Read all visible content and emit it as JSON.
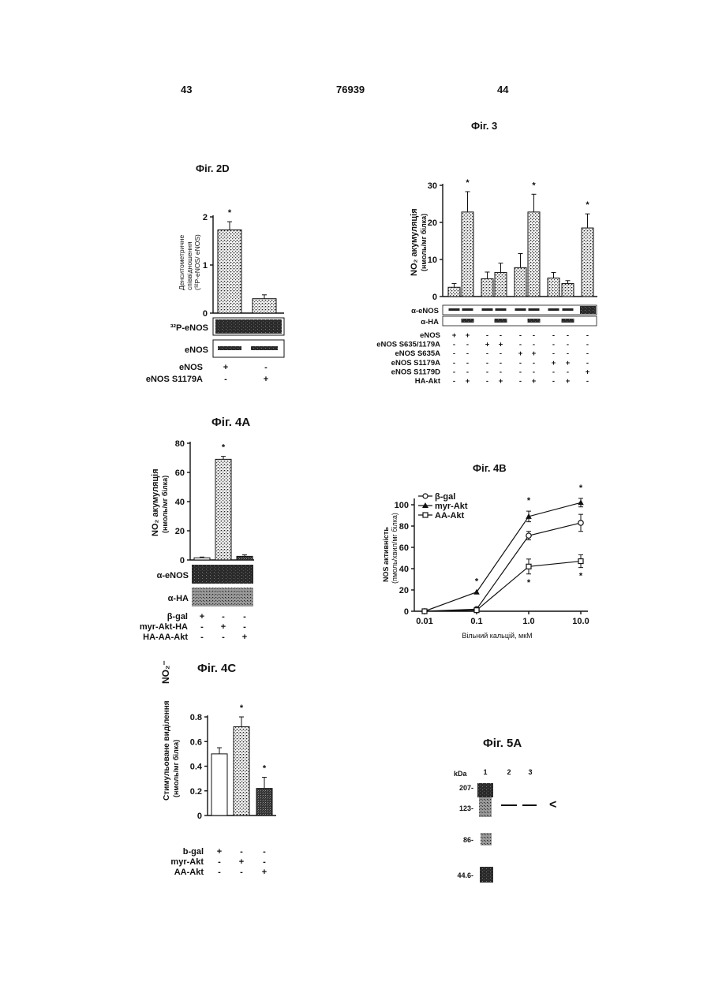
{
  "header": {
    "left_page": "43",
    "patent_number": "76939",
    "right_page": "44"
  },
  "fig2d": {
    "title": "Фіг. 2D",
    "ylabel_line1": "Денситометричне",
    "ylabel_line2": "співвідношення",
    "ylabel_line3": "(³²P-eNOS/ eNOS)",
    "blot_labels": [
      "³²P-eNOS",
      "eNOS"
    ],
    "row_labels": [
      "eNOS",
      "eNOS S1179A"
    ],
    "row_signs": [
      [
        "+",
        "-"
      ],
      [
        "-",
        "+"
      ]
    ],
    "chart_data": {
      "type": "bar",
      "ylim": [
        0,
        2
      ],
      "yticks": [
        0,
        1,
        2
      ],
      "values": [
        1.73,
        0.3
      ],
      "errors": [
        0.17,
        0.08
      ],
      "significant": [
        "*",
        ""
      ]
    }
  },
  "fig3": {
    "title": "Фіг. 3",
    "ylabel_line1": "NO₂ акумуляція",
    "ylabel_line2": "(нмоль/мг білка)",
    "blot_labels": [
      "α-eNOS",
      "α-HA"
    ],
    "row_labels": [
      "eNOS",
      "eNOS S635/1179A",
      "eNOS S635A",
      "eNOS S1179A",
      "eNOS S1179D",
      "HA-Akt"
    ],
    "row_signs": [
      [
        "+",
        "+",
        "-",
        "-",
        "-",
        "-",
        "-",
        "-",
        "-"
      ],
      [
        "-",
        "-",
        "+",
        "+",
        "-",
        "-",
        "-",
        "-",
        "-"
      ],
      [
        "-",
        "-",
        "-",
        "-",
        "+",
        "+",
        "-",
        "-",
        "-"
      ],
      [
        "-",
        "-",
        "-",
        "-",
        "-",
        "-",
        "+",
        "+",
        "-"
      ],
      [
        "-",
        "-",
        "-",
        "-",
        "-",
        "-",
        "-",
        "-",
        "+"
      ],
      [
        "-",
        "+",
        "-",
        "+",
        "-",
        "+",
        "-",
        "+",
        "-"
      ]
    ],
    "chart_data": {
      "type": "bar",
      "ylim": [
        0,
        30
      ],
      "yticks": [
        0,
        10,
        20,
        30
      ],
      "values": [
        2.5,
        22.8,
        4.8,
        6.5,
        7.8,
        22.8,
        5,
        3.5,
        18.5
      ],
      "errors": [
        1,
        5.5,
        1.8,
        2.5,
        3.8,
        4.8,
        1.5,
        0.8,
        3.8
      ],
      "significant": [
        "",
        "*",
        "",
        "",
        "",
        "*",
        "",
        "",
        "*"
      ]
    }
  },
  "fig4a": {
    "title": "Фіг. 4A",
    "ylabel_line1": "NO₂ акумуляція",
    "ylabel_line2": "(нмоль/мг білка)",
    "blot_labels": [
      "α-eNOS",
      "α-HA"
    ],
    "row_labels": [
      "β-gal",
      "myr-Akt-HA",
      "HA-AA-Akt"
    ],
    "row_signs": [
      [
        "+",
        "-",
        "-"
      ],
      [
        "-",
        "+",
        "-"
      ],
      [
        "-",
        "-",
        "+"
      ]
    ],
    "chart_data": {
      "type": "bar",
      "ylim": [
        0,
        80
      ],
      "yticks": [
        0,
        20,
        40,
        60,
        80
      ],
      "values": [
        1.5,
        69,
        2.5
      ],
      "errors": [
        0.5,
        2,
        1
      ],
      "significant": [
        "",
        "*",
        ""
      ]
    }
  },
  "fig4b": {
    "title": "Фіг. 4B",
    "ylabel_line1": "NOS    активність",
    "ylabel_line2": "(пмоль/хвил/мг білка)",
    "xlabel": "Вільний кальцій, мкМ",
    "chart_data": {
      "type": "line",
      "x": [
        0.01,
        0.1,
        1.0,
        10.0
      ],
      "xticks": [
        "0.01",
        "0.1",
        "1.0",
        "10.0"
      ],
      "ylim": [
        0,
        100
      ],
      "yticks": [
        0,
        20,
        40,
        60,
        80,
        100
      ],
      "series": [
        {
          "name": "β-gal",
          "marker": "open-circle",
          "values": [
            0,
            2,
            71,
            83
          ],
          "errors": [
            0,
            0,
            4,
            8
          ]
        },
        {
          "name": "myr-Akt",
          "marker": "filled-triangle",
          "values": [
            0,
            18,
            89,
            102
          ],
          "errors": [
            0,
            0,
            5,
            4
          ]
        },
        {
          "name": "AA-Akt",
          "marker": "open-square",
          "values": [
            0,
            1,
            42,
            47
          ],
          "errors": [
            0,
            0,
            7,
            6
          ]
        }
      ],
      "stars_above": [
        [
          "0.1",
          "*"
        ],
        [
          "1.0",
          "*"
        ],
        [
          "10.0",
          "*"
        ]
      ],
      "stars_below": [
        [
          "1.0",
          "*"
        ],
        [
          "10.0",
          "*"
        ]
      ]
    }
  },
  "fig4c": {
    "title": "Фіг. 4C",
    "ylabel_line1": "Стимульоване  виділення",
    "ylabel_line2": "(нмоль/мг білка)",
    "ylabel_no2": "NO₂⁻",
    "row_labels": [
      "b-gal",
      "myr-Akt",
      "AA-Akt"
    ],
    "row_signs": [
      [
        "+",
        "-",
        "-"
      ],
      [
        "-",
        "+",
        "-"
      ],
      [
        "-",
        "-",
        "+"
      ]
    ],
    "chart_data": {
      "type": "bar",
      "ylim": [
        0,
        0.8
      ],
      "yticks": [
        "0",
        "0.2",
        "0.4",
        "0.6",
        "0.8"
      ],
      "values": [
        0.5,
        0.72,
        0.22
      ],
      "errors": [
        0.05,
        0.08,
        0.09
      ],
      "significant": [
        "",
        "*",
        "*"
      ]
    }
  },
  "fig5a": {
    "title": "Фіг. 5A",
    "kda_label": "kDa",
    "lanes": [
      "1",
      "2",
      "3"
    ],
    "markers": [
      "207-",
      "123-",
      "86-",
      "44.6-"
    ],
    "arrow": "<"
  }
}
